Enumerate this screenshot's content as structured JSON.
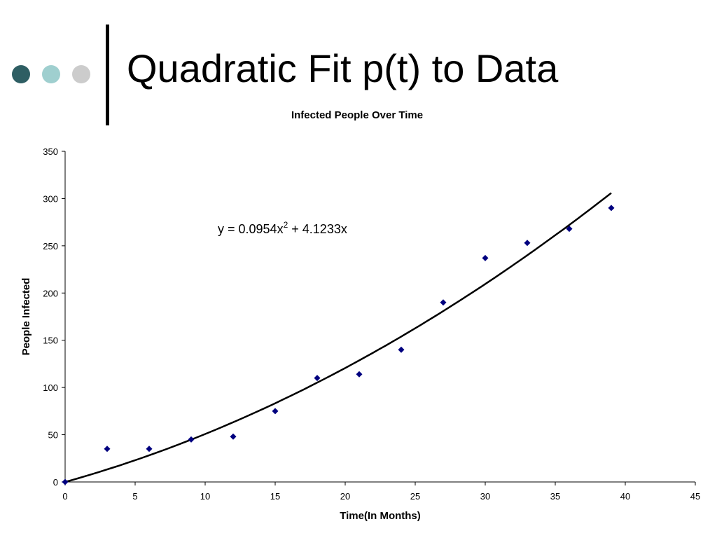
{
  "slide": {
    "title": "Quadratic Fit p(t) to Data",
    "decor_dot_colors": [
      "#2e5e63",
      "#9fcfcf",
      "#cccccc"
    ]
  },
  "chart_data": {
    "type": "scatter",
    "title": "Infected People Over Time",
    "xlabel": "Time(In Months)",
    "ylabel": "People Infected",
    "xlim": [
      0,
      45
    ],
    "ylim": [
      0,
      350
    ],
    "x_ticks": [
      0,
      5,
      10,
      15,
      20,
      25,
      30,
      35,
      40,
      45
    ],
    "y_ticks": [
      0,
      50,
      100,
      150,
      200,
      250,
      300,
      350
    ],
    "grid": false,
    "legend": "none",
    "marker_color": "#00007f",
    "series": [
      {
        "x": [
          0,
          3,
          6,
          9,
          12,
          15,
          18,
          21,
          24,
          27,
          30,
          33,
          36,
          39
        ],
        "y": [
          0,
          35,
          35,
          45,
          48,
          75,
          110,
          114,
          140,
          190,
          237,
          253,
          268,
          290
        ]
      }
    ],
    "trendline": {
      "type": "polynomial",
      "coefficients": {
        "a2": 0.0954,
        "a1": 4.1233,
        "a0": 0
      },
      "x_range": [
        0,
        39
      ],
      "equation": {
        "lhs": "y = 0.0954x",
        "exponent": "2",
        "rhs": " + 4.1233x"
      }
    }
  }
}
